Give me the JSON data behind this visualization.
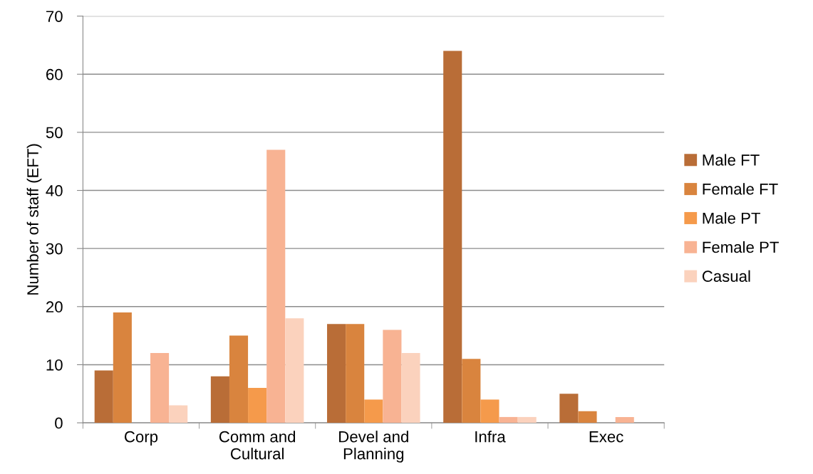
{
  "chart_data": {
    "type": "bar",
    "ylabel": "Number of staff (EFT)",
    "categories": [
      "Corp",
      "Comm and\nCultural",
      "Devel and\nPlanning",
      "Infra",
      "Exec"
    ],
    "series": [
      {
        "name": "Male FT",
        "color": "#b96d37",
        "values": [
          9,
          8,
          17,
          64,
          5
        ]
      },
      {
        "name": "Female FT",
        "color": "#d9843e",
        "values": [
          19,
          15,
          17,
          11,
          2
        ]
      },
      {
        "name": "Male PT",
        "color": "#f59a4b",
        "values": [
          0,
          6,
          4,
          4,
          0
        ]
      },
      {
        "name": "Female PT",
        "color": "#f8b393",
        "values": [
          12,
          47,
          16,
          1,
          1
        ]
      },
      {
        "name": "Casual",
        "color": "#fbd2bd",
        "values": [
          3,
          18,
          12,
          1,
          0
        ]
      }
    ],
    "ylim": [
      0,
      70
    ],
    "yticks": [
      0,
      10,
      20,
      30,
      40,
      50,
      60,
      70
    ],
    "grid": "y",
    "legend": "right"
  }
}
